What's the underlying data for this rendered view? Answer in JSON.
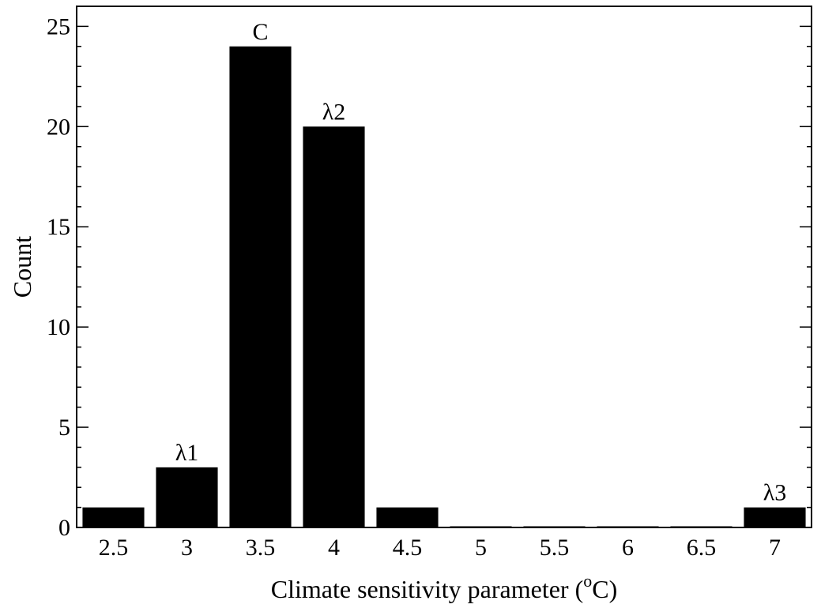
{
  "chart_data": {
    "type": "bar",
    "xlabel": "Climate sensitivity parameter (",
    "xlabel_unit_superscript": "o",
    "xlabel_unit": "C)",
    "ylabel": "Count",
    "categories": [
      "2.5",
      "3",
      "3.5",
      "4",
      "4.5",
      "5",
      "5.5",
      "6",
      "6.5",
      "7"
    ],
    "values": [
      1,
      3,
      24,
      20,
      1,
      0,
      0,
      0,
      0,
      1
    ],
    "bar_labels": [
      "",
      "λ1",
      "C",
      "λ2",
      "",
      "",
      "",
      "",
      "",
      "λ3"
    ],
    "ylim": [
      0,
      26
    ],
    "yticks": [
      0,
      5,
      10,
      15,
      20,
      25
    ],
    "y_minor_step": 1,
    "bar_color": "#000000",
    "grid": false,
    "legend": "none"
  }
}
